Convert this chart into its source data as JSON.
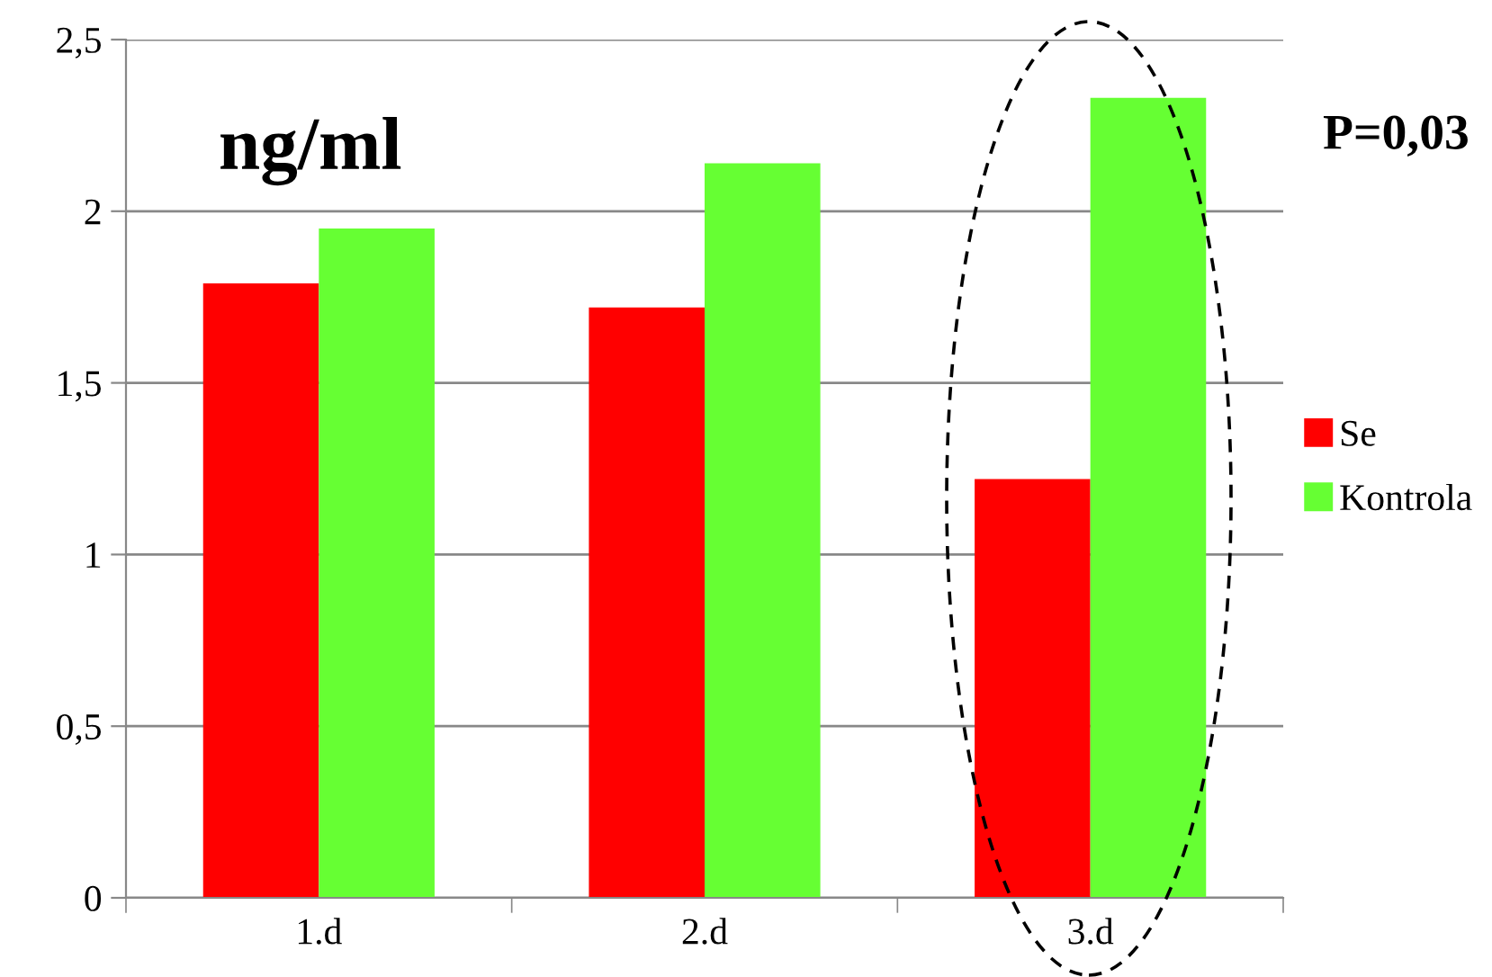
{
  "chart_data": {
    "type": "bar",
    "ylabel": "ng/ml",
    "categories": [
      "1.d",
      "2.d",
      "3.d"
    ],
    "series": [
      {
        "name": "Se",
        "color": "#ff0000",
        "values": [
          1.79,
          1.72,
          1.22
        ]
      },
      {
        "name": "Kontrola",
        "color": "#66ff33",
        "values": [
          1.95,
          2.14,
          2.33
        ]
      }
    ],
    "ylim": [
      0,
      2.5
    ],
    "yticks": [
      0,
      {
        "value": 0.5,
        "label": "0,5"
      },
      1,
      {
        "value": 1.5,
        "label": "1,5"
      },
      2,
      {
        "value": 2.5,
        "label": "2,5"
      }
    ],
    "annotations": [
      "P=0,03"
    ],
    "grid": "y",
    "legend": "right"
  }
}
